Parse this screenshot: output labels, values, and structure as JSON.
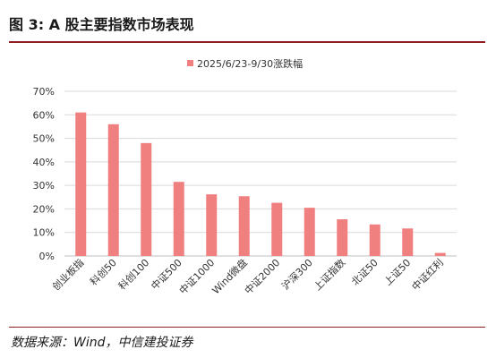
{
  "figure": {
    "title": "图 3: A 股主要指数市场表现",
    "source": "数据来源：Wind，中信建投证券"
  },
  "chart_data": {
    "type": "bar",
    "legend_position": "top-center",
    "grid": true,
    "bar_color": "#f08080",
    "series": [
      {
        "name": "2025/6/23-9/30涨跌幅",
        "values": [
          61,
          56,
          48,
          31.5,
          26.2,
          25.4,
          22.6,
          20.5,
          15.6,
          13.4,
          11.7,
          1.3
        ]
      }
    ],
    "categories": [
      "创业板指",
      "科创50",
      "科创100",
      "中证500",
      "中证1000",
      "Wind微盘",
      "中证2000",
      "沪深300",
      "上证指数",
      "北证50",
      "上证50",
      "中证红利"
    ],
    "yticks": [
      "0%",
      "10%",
      "20%",
      "30%",
      "40%",
      "50%",
      "60%",
      "70%"
    ],
    "ylim": [
      0,
      70
    ]
  }
}
